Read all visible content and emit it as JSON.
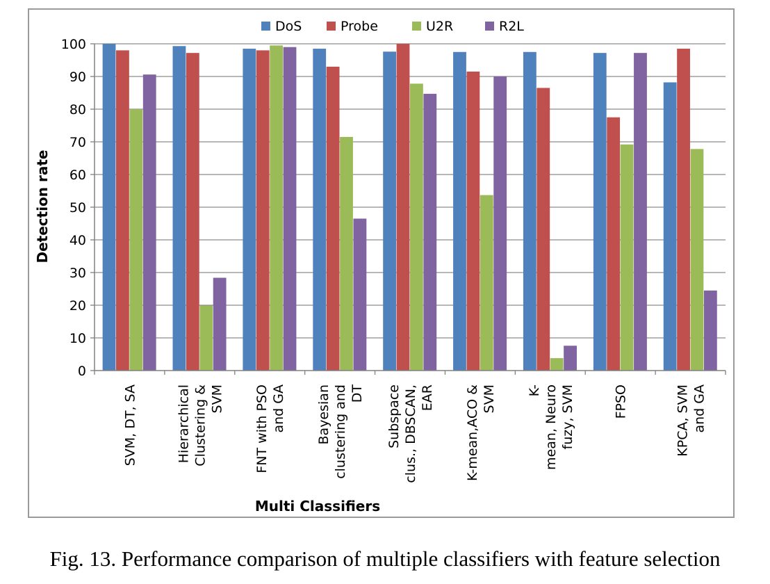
{
  "chart_data": {
    "type": "bar",
    "title": "",
    "xlabel": "Multi Classifiers",
    "ylabel": "Detection rate",
    "ylim": [
      0,
      100
    ],
    "yticks": [
      0,
      10,
      20,
      30,
      40,
      50,
      60,
      70,
      80,
      90,
      100
    ],
    "grid": true,
    "legend_position": "top",
    "categories": [
      [
        "SVM, DT, SA"
      ],
      [
        "Hierarchical",
        "Clustering &",
        "SVM"
      ],
      [
        "FNT with PSO",
        "and GA"
      ],
      [
        "Bayesian",
        "clustering and",
        "DT"
      ],
      [
        "Subspace",
        "clus., DBSCAN,",
        "EAR"
      ],
      [
        "K-mean,ACO &",
        "SVM"
      ],
      [
        "K-",
        "mean, Neuro",
        "fuzy, SVM"
      ],
      [
        "FPSO"
      ],
      [
        "KPCA, SVM",
        "and GA"
      ]
    ],
    "series": [
      {
        "name": "DoS",
        "color": "#4f81bd",
        "values": [
          100,
          99.3,
          98.5,
          98.5,
          97.6,
          97.5,
          97.5,
          97.2,
          88.2
        ]
      },
      {
        "name": "Probe",
        "color": "#c0504d",
        "values": [
          98.0,
          97.2,
          98.0,
          93.0,
          100,
          91.5,
          86.5,
          77.5,
          98.5
        ]
      },
      {
        "name": "U2R",
        "color": "#9bbb59",
        "values": [
          80.0,
          19.9,
          99.5,
          71.5,
          87.8,
          53.7,
          3.8,
          69.2,
          67.8
        ]
      },
      {
        "name": "R2L",
        "color": "#8064a2",
        "values": [
          90.6,
          28.4,
          99.0,
          46.5,
          84.7,
          90.0,
          7.6,
          97.2,
          24.5
        ]
      }
    ]
  },
  "caption": "Fig. 13.   Performance comparison of multiple classifiers with feature selection"
}
